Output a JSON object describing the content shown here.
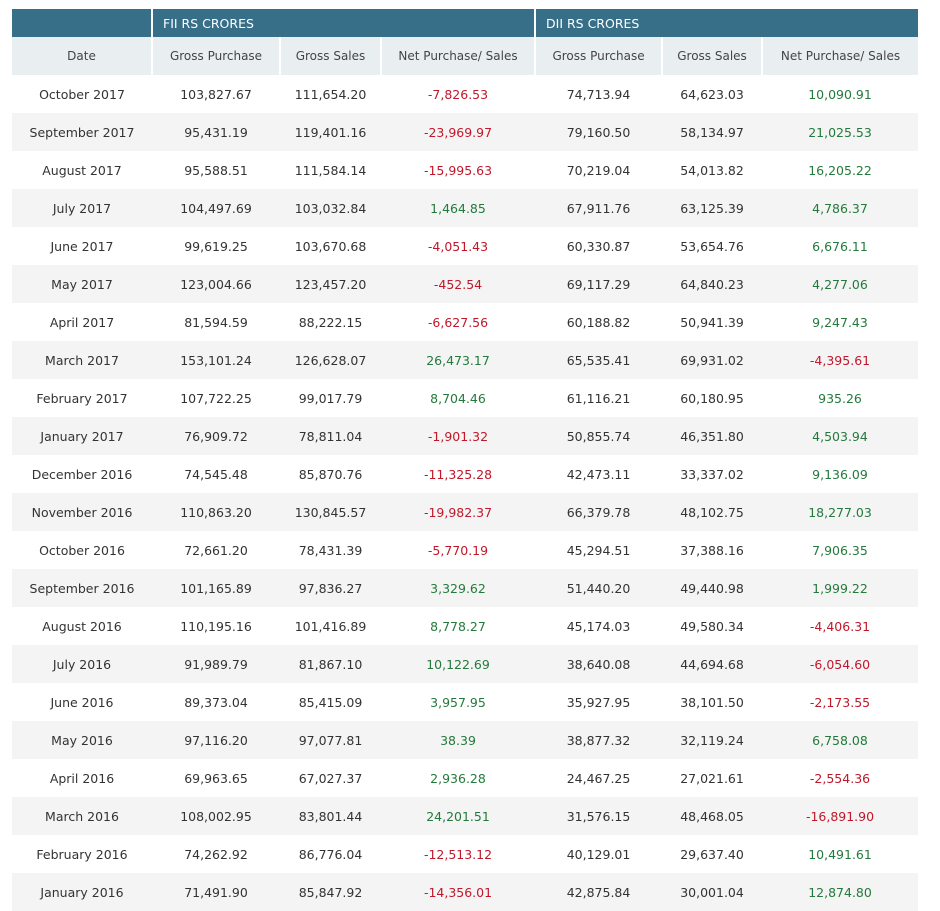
{
  "groups": {
    "fii": "FII RS CRORES",
    "dii": "DII RS CRORES"
  },
  "columns": [
    "Date",
    "Gross Purchase",
    "Gross Sales",
    "Net Purchase/ Sales",
    "Gross Purchase",
    "Gross Sales",
    "Net Purchase/ Sales"
  ],
  "rows": [
    [
      "October 2017",
      "103,827.67",
      "111,654.20",
      "-7,826.53",
      "74,713.94",
      "64,623.03",
      "10,090.91"
    ],
    [
      "September 2017",
      "95,431.19",
      "119,401.16",
      "-23,969.97",
      "79,160.50",
      "58,134.97",
      "21,025.53"
    ],
    [
      "August 2017",
      "95,588.51",
      "111,584.14",
      "-15,995.63",
      "70,219.04",
      "54,013.82",
      "16,205.22"
    ],
    [
      "July 2017",
      "104,497.69",
      "103,032.84",
      "1,464.85",
      "67,911.76",
      "63,125.39",
      "4,786.37"
    ],
    [
      "June 2017",
      "99,619.25",
      "103,670.68",
      "-4,051.43",
      "60,330.87",
      "53,654.76",
      "6,676.11"
    ],
    [
      "May 2017",
      "123,004.66",
      "123,457.20",
      "-452.54",
      "69,117.29",
      "64,840.23",
      "4,277.06"
    ],
    [
      "April 2017",
      "81,594.59",
      "88,222.15",
      "-6,627.56",
      "60,188.82",
      "50,941.39",
      "9,247.43"
    ],
    [
      "March 2017",
      "153,101.24",
      "126,628.07",
      "26,473.17",
      "65,535.41",
      "69,931.02",
      "-4,395.61"
    ],
    [
      "February 2017",
      "107,722.25",
      "99,017.79",
      "8,704.46",
      "61,116.21",
      "60,180.95",
      "935.26"
    ],
    [
      "January 2017",
      "76,909.72",
      "78,811.04",
      "-1,901.32",
      "50,855.74",
      "46,351.80",
      "4,503.94"
    ],
    [
      "December 2016",
      "74,545.48",
      "85,870.76",
      "-11,325.28",
      "42,473.11",
      "33,337.02",
      "9,136.09"
    ],
    [
      "November 2016",
      "110,863.20",
      "130,845.57",
      "-19,982.37",
      "66,379.78",
      "48,102.75",
      "18,277.03"
    ],
    [
      "October 2016",
      "72,661.20",
      "78,431.39",
      "-5,770.19",
      "45,294.51",
      "37,388.16",
      "7,906.35"
    ],
    [
      "September 2016",
      "101,165.89",
      "97,836.27",
      "3,329.62",
      "51,440.20",
      "49,440.98",
      "1,999.22"
    ],
    [
      "August 2016",
      "110,195.16",
      "101,416.89",
      "8,778.27",
      "45,174.03",
      "49,580.34",
      "-4,406.31"
    ],
    [
      "July 2016",
      "91,989.79",
      "81,867.10",
      "10,122.69",
      "38,640.08",
      "44,694.68",
      "-6,054.60"
    ],
    [
      "June 2016",
      "89,373.04",
      "85,415.09",
      "3,957.95",
      "35,927.95",
      "38,101.50",
      "-2,173.55"
    ],
    [
      "May 2016",
      "97,116.20",
      "97,077.81",
      "38.39",
      "38,877.32",
      "32,119.24",
      "6,758.08"
    ],
    [
      "April 2016",
      "69,963.65",
      "67,027.37",
      "2,936.28",
      "24,467.25",
      "27,021.61",
      "-2,554.36"
    ],
    [
      "March 2016",
      "108,002.95",
      "83,801.44",
      "24,201.51",
      "31,576.15",
      "48,468.05",
      "-16,891.90"
    ],
    [
      "February 2016",
      "74,262.92",
      "86,776.04",
      "-12,513.12",
      "40,129.01",
      "29,637.40",
      "10,491.61"
    ],
    [
      "January 2016",
      "71,491.90",
      "85,847.92",
      "-14,356.01",
      "42,875.84",
      "30,001.04",
      "12,874.80"
    ]
  ]
}
